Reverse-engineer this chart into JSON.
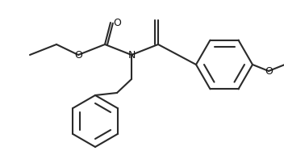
{
  "bg_color": "#ffffff",
  "line_color": "#2a2a2a",
  "line_width": 1.5,
  "fig_width": 3.52,
  "fig_height": 1.92,
  "dpi": 100,
  "N_label": "N",
  "O_ester_label": "O",
  "O_carbonyl_label": "O",
  "O_methoxy_label": "O"
}
